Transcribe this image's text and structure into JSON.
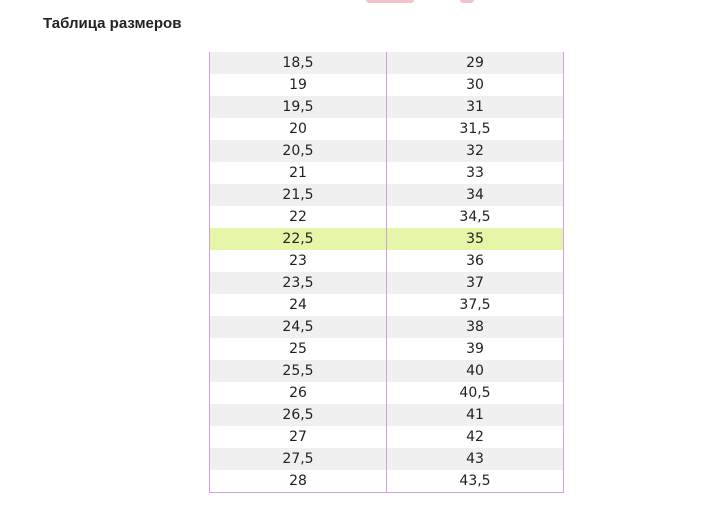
{
  "page": {
    "title": "Таблица размеров"
  },
  "size_table": {
    "highlight_color": "#e6f6a8",
    "stripe_color": "#f0f0f0",
    "border_color": "#d4a0d8",
    "highlighted_row_index": 8,
    "rows": [
      [
        "18,5",
        "29"
      ],
      [
        "19",
        "30"
      ],
      [
        "19,5",
        "31"
      ],
      [
        "20",
        "31,5"
      ],
      [
        "20,5",
        "32"
      ],
      [
        "21",
        "33"
      ],
      [
        "21,5",
        "34"
      ],
      [
        "22",
        "34,5"
      ],
      [
        "22,5",
        "35"
      ],
      [
        "23",
        "36"
      ],
      [
        "23,5",
        "37"
      ],
      [
        "24",
        "37,5"
      ],
      [
        "24,5",
        "38"
      ],
      [
        "25",
        "39"
      ],
      [
        "25,5",
        "40"
      ],
      [
        "26",
        "40,5"
      ],
      [
        "26,5",
        "41"
      ],
      [
        "27",
        "42"
      ],
      [
        "27,5",
        "43"
      ],
      [
        "28",
        "43,5"
      ]
    ]
  }
}
